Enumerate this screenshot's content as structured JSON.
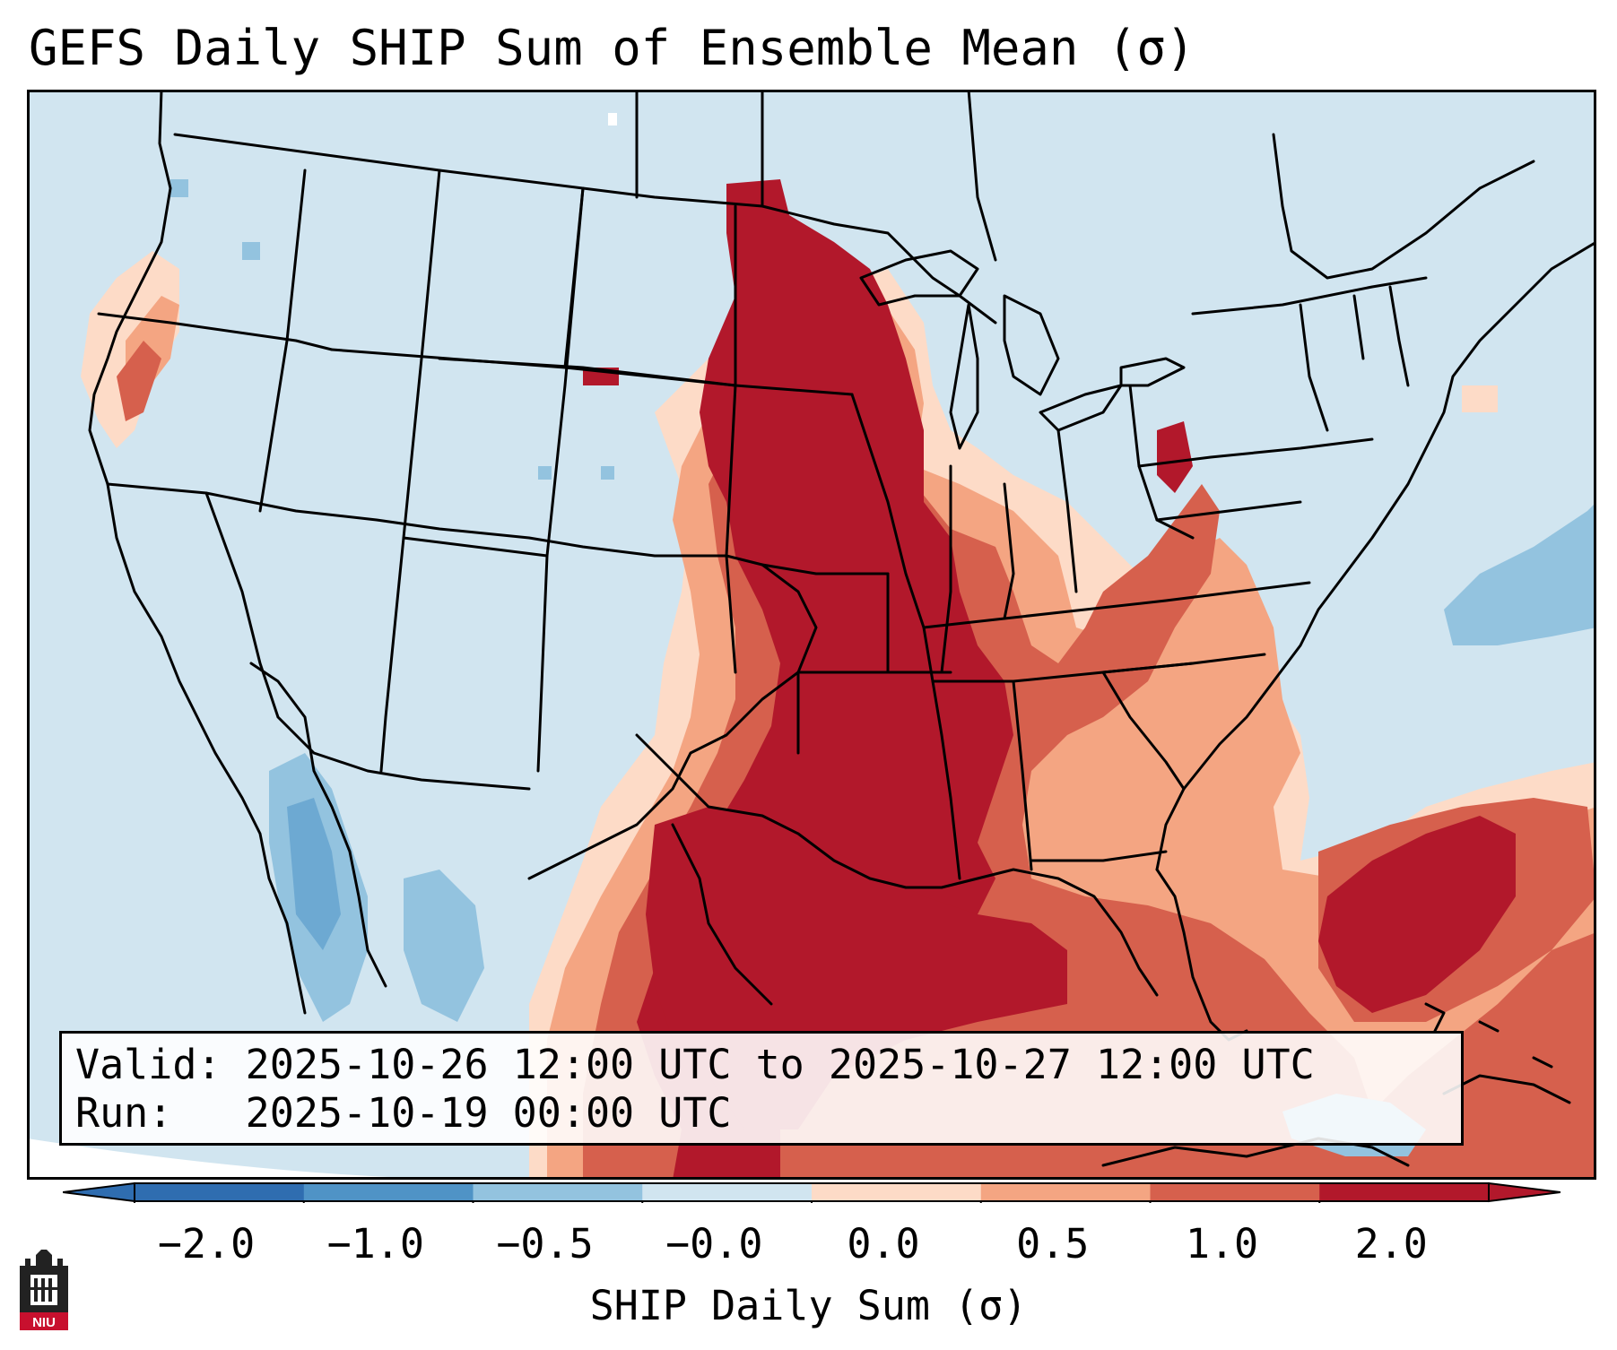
{
  "title": "GEFS Daily SHIP Sum of Ensemble Mean (σ)",
  "info": {
    "valid_label": "Valid:",
    "valid_value": "2025-10-26 12:00 UTC to 2025-10-27 12:00 UTC",
    "run_label": "Run:",
    "run_value": "2025-10-19 00:00 UTC"
  },
  "colorbar": {
    "label": "SHIP Daily Sum (σ)",
    "ticks": [
      "−2.0",
      "−1.0",
      "−0.5",
      "−0.0",
      "0.0",
      "0.5",
      "1.0",
      "2.0"
    ],
    "colors": [
      "#2f6db0",
      "#4f93c6",
      "#93c3df",
      "#d1e5f0",
      "#fddbc7",
      "#f4a582",
      "#d6604d",
      "#b2182b"
    ],
    "extend": "both"
  },
  "map": {
    "background_color": "#d1e5f0",
    "border_color": "#000000",
    "region": "CONUS"
  },
  "logo": {
    "text": "NIU",
    "icon": "niu-castle-logo",
    "color": "#c8102e"
  }
}
